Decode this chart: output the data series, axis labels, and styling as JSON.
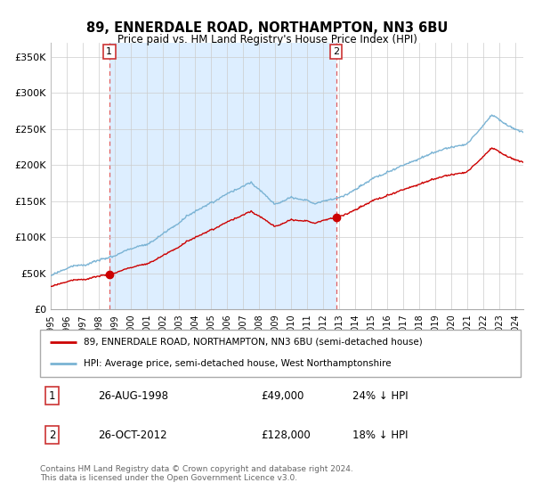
{
  "title": "89, ENNERDALE ROAD, NORTHAMPTON, NN3 6BU",
  "subtitle": "Price paid vs. HM Land Registry's House Price Index (HPI)",
  "ylabel_ticks": [
    "£0",
    "£50K",
    "£100K",
    "£150K",
    "£200K",
    "£250K",
    "£300K",
    "£350K"
  ],
  "ytick_values": [
    0,
    50000,
    100000,
    150000,
    200000,
    250000,
    300000,
    350000
  ],
  "ylim": [
    0,
    370000
  ],
  "xlim_start": 1995.0,
  "xlim_end": 2024.5,
  "hpi_color": "#7ab3d4",
  "price_color": "#cc0000",
  "dashed_color": "#e06060",
  "shade_color": "#ddeeff",
  "sale1_t": 1998.65,
  "sale1_p": 49000,
  "sale2_t": 2012.81,
  "sale2_p": 128000,
  "legend_line1": "89, ENNERDALE ROAD, NORTHAMPTON, NN3 6BU (semi-detached house)",
  "legend_line2": "HPI: Average price, semi-detached house, West Northamptonshire",
  "table_row1": [
    "1",
    "26-AUG-1998",
    "£49,000",
    "24% ↓ HPI"
  ],
  "table_row2": [
    "2",
    "26-OCT-2012",
    "£128,000",
    "18% ↓ HPI"
  ],
  "footer": "Contains HM Land Registry data © Crown copyright and database right 2024.\nThis data is licensed under the Open Government Licence v3.0.",
  "background_color": "#ffffff"
}
